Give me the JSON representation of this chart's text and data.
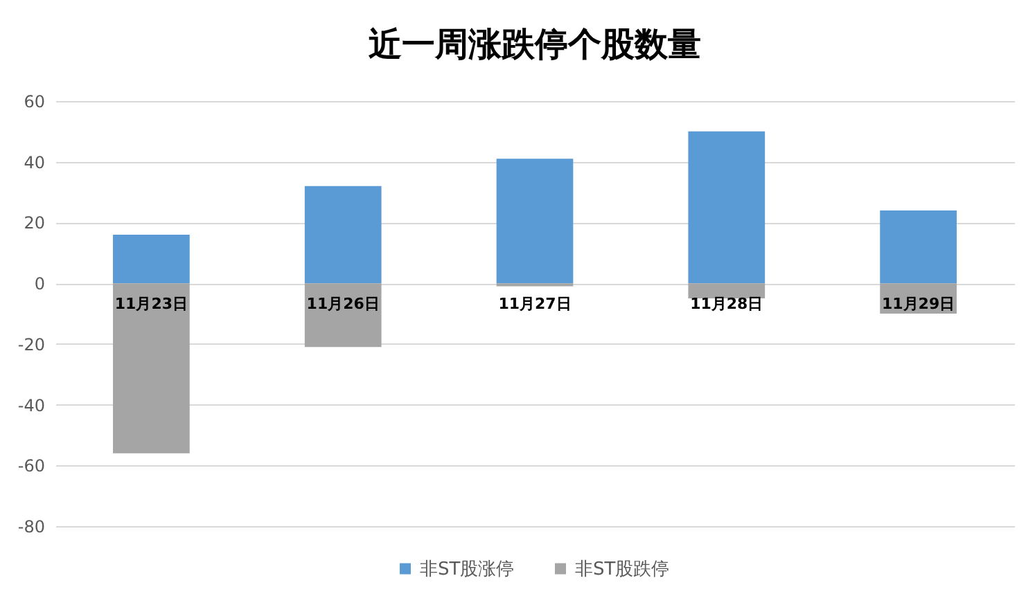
{
  "chart_data": {
    "type": "bar",
    "title": "近一周涨跌停个股数量",
    "categories": [
      "11月23日",
      "11月26日",
      "11月27日",
      "11月28日",
      "11月29日"
    ],
    "series": [
      {
        "name": "非ST股涨停",
        "color": "#5b9bd5",
        "values": [
          16,
          32,
          41,
          50,
          24
        ]
      },
      {
        "name": "非ST股跌停",
        "color": "#a5a5a5",
        "values": [
          -56,
          -21,
          -1,
          -5,
          -10
        ]
      }
    ],
    "stacked": true,
    "ylim": [
      -80,
      60
    ],
    "yticks": [
      -80,
      -60,
      -40,
      -20,
      0,
      20,
      40,
      60
    ],
    "grid": "y",
    "legend": "bottom"
  }
}
